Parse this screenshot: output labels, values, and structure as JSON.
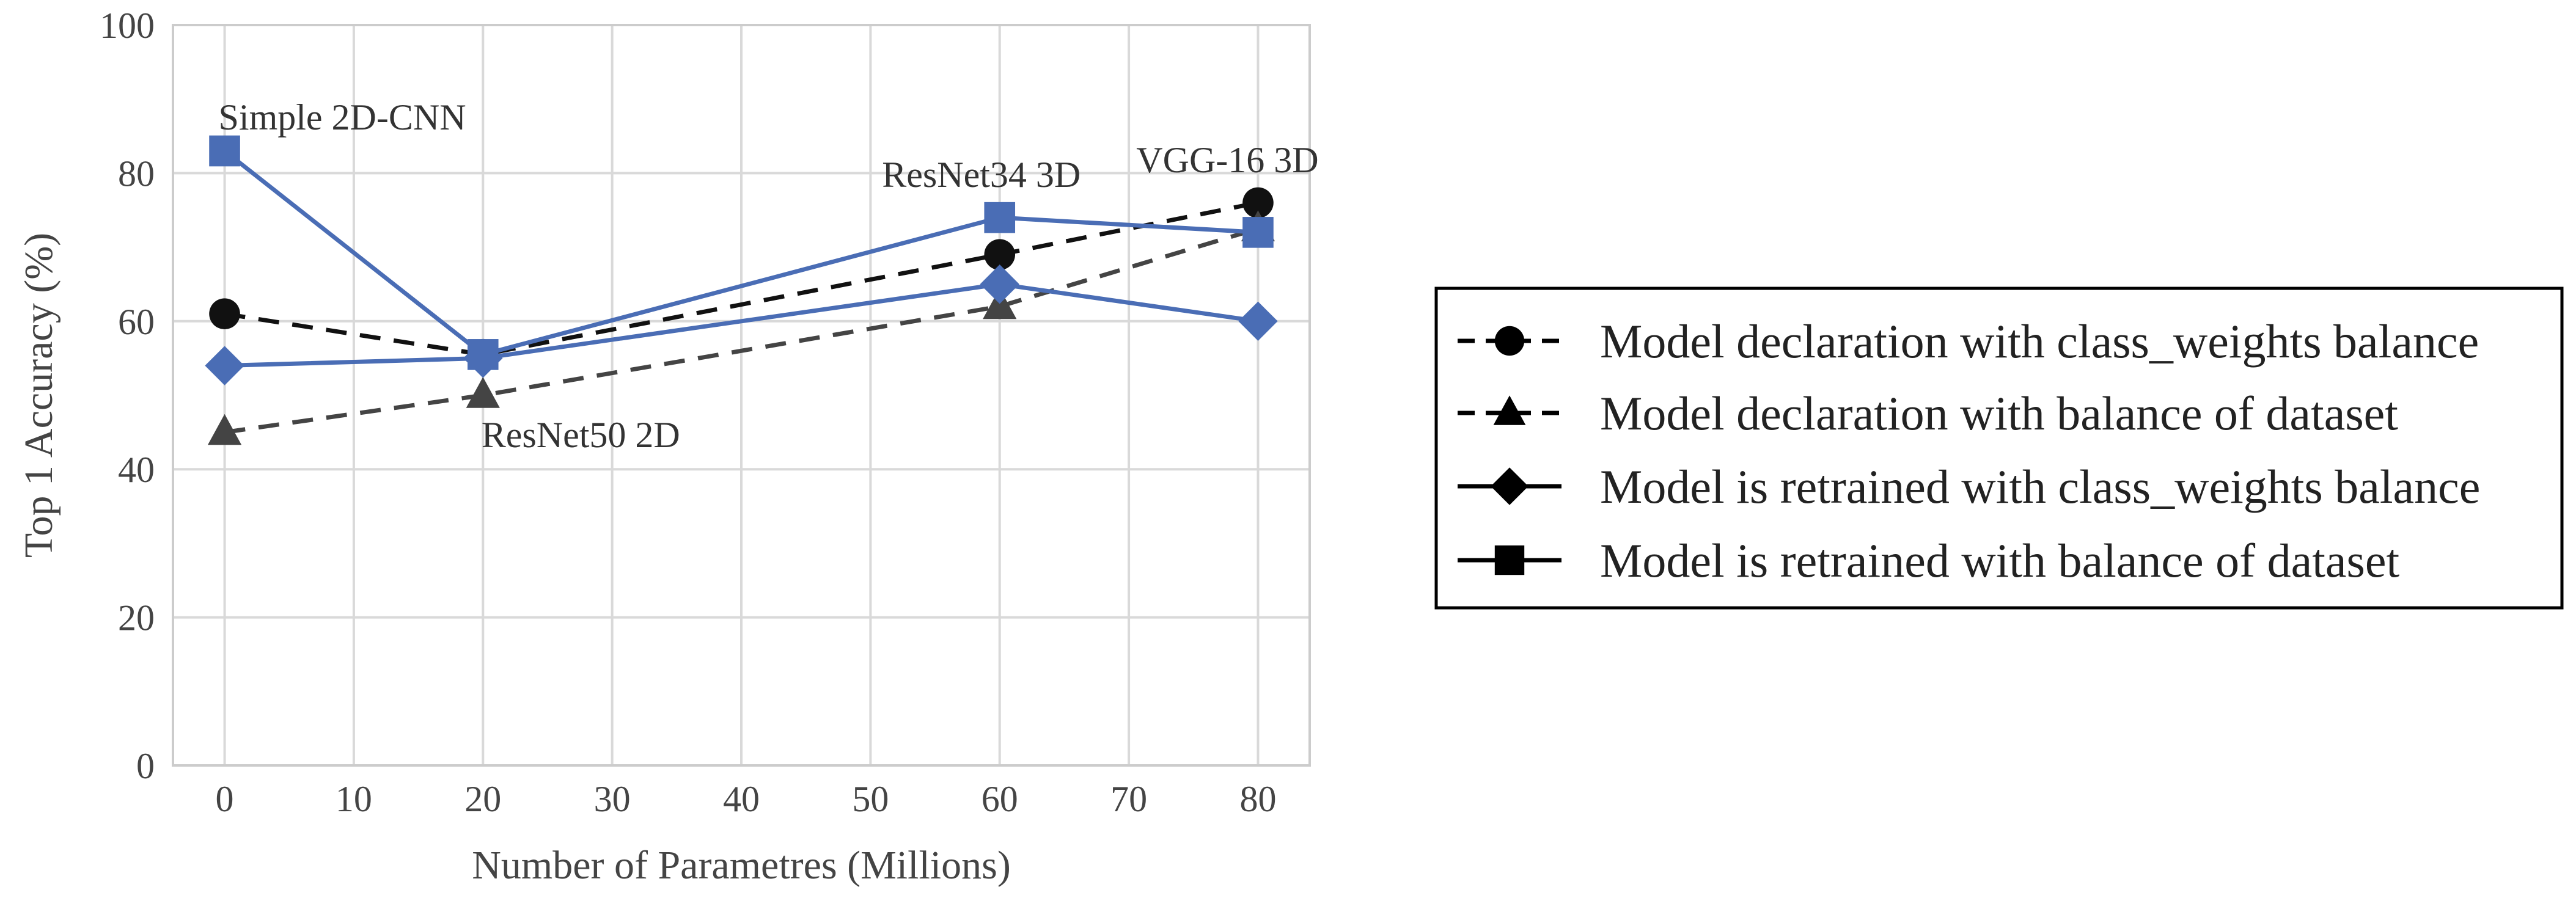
{
  "chart_data": {
    "type": "line",
    "title": "",
    "xlabel": "Number of Parametres (Millions)",
    "ylabel": "Top 1 Accuracy (%)",
    "xlim": [
      -4,
      84
    ],
    "ylim": [
      0,
      100
    ],
    "xticks": [
      "0",
      "10",
      "20",
      "30",
      "40",
      "50",
      "60",
      "70",
      "80"
    ],
    "yticks": [
      "0",
      "20",
      "40",
      "60",
      "80",
      "100"
    ],
    "grid": true,
    "legend_position": "right",
    "series": [
      {
        "name": "Model declaration with class_weights balance",
        "marker": "circle",
        "dashed": true,
        "color": "#111111",
        "points": [
          [
            0,
            61
          ],
          [
            20,
            55.5
          ],
          [
            60,
            69
          ],
          [
            80,
            76
          ]
        ]
      },
      {
        "name": "Model declaration with balance of dataset",
        "marker": "triangle",
        "dashed": true,
        "color": "#444444",
        "points": [
          [
            0,
            45
          ],
          [
            20,
            50
          ],
          [
            60,
            62
          ],
          [
            80,
            72.5
          ]
        ]
      },
      {
        "name": "Model is retrained with class_weights balance",
        "marker": "diamond",
        "dashed": false,
        "color": "#4a6db5",
        "points": [
          [
            0,
            54
          ],
          [
            20,
            55
          ],
          [
            60,
            65
          ],
          [
            80,
            60
          ]
        ]
      },
      {
        "name": "Model is retrained with balance of dataset",
        "marker": "square",
        "dashed": false,
        "color": "#4a6db5",
        "points": [
          [
            0,
            83
          ],
          [
            20,
            55.5
          ],
          [
            60,
            74
          ],
          [
            80,
            72
          ]
        ]
      }
    ],
    "annotations": [
      {
        "text": "Simple 2D-CNN",
        "x": 0,
        "y": 83
      },
      {
        "text": "ResNet50 2D",
        "x": 20,
        "y": 50
      },
      {
        "text": "ResNet34 3D",
        "x": 60,
        "y": 74
      },
      {
        "text": "VGG-16 3D",
        "x": 80,
        "y": 76
      }
    ],
    "legend_marker_color": "#000000"
  }
}
